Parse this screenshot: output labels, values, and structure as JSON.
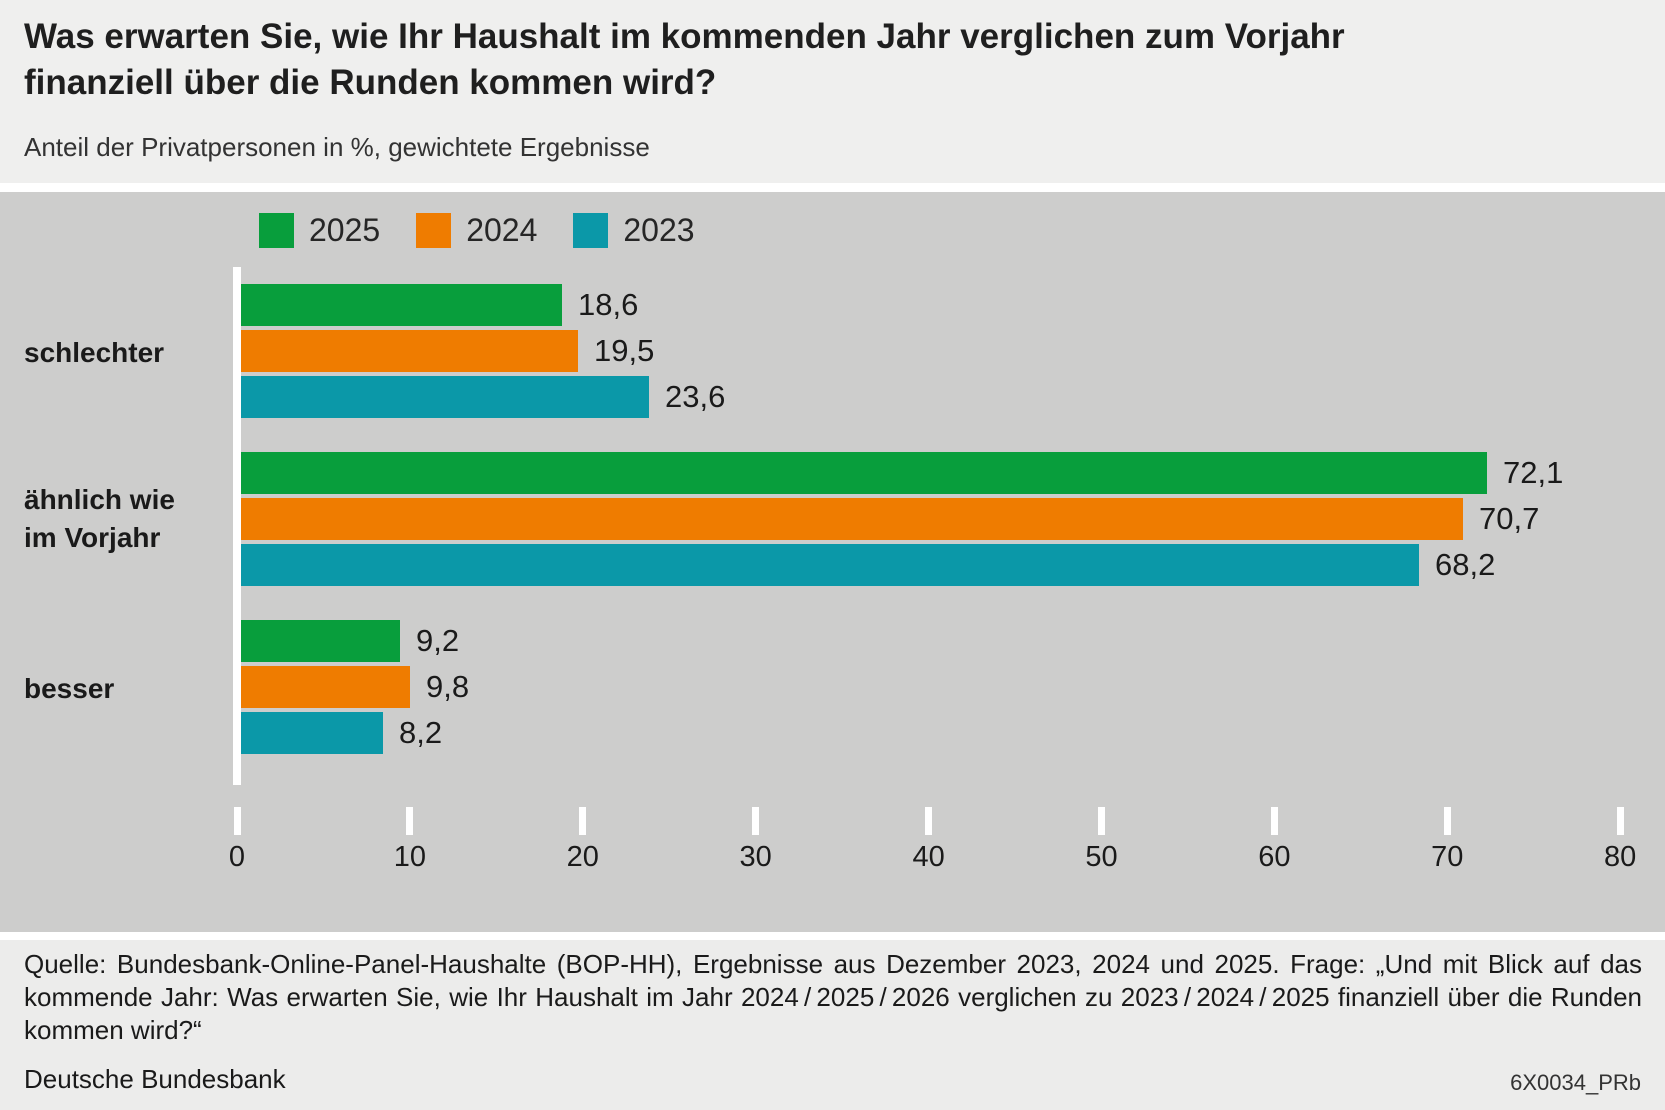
{
  "header": {
    "title_line1": "Was erwarten Sie, wie Ihr Haushalt im kommenden Jahr verglichen zum Vorjahr",
    "title_line2": "finanziell über die Runden kommen wird?",
    "subtitle": "Anteil der Privatpersonen in %, gewichtete Ergebnisse"
  },
  "chart_data": {
    "type": "bar",
    "orientation": "horizontal",
    "title": "Was erwarten Sie, wie Ihr Haushalt im kommenden Jahr verglichen zum Vorjahr finanziell über die Runden kommen wird?",
    "subtitle": "Anteil der Privatpersonen in %, gewichtete Ergebnisse",
    "categories": [
      "schlechter",
      "ähnlich wie\nim Vorjahr",
      "besser"
    ],
    "series": [
      {
        "name": "2025",
        "color": "#089e3c",
        "values": [
          18.6,
          72.1,
          9.2
        ]
      },
      {
        "name": "2024",
        "color": "#ef7c00",
        "values": [
          19.5,
          70.7,
          9.8
        ]
      },
      {
        "name": "2023",
        "color": "#0b98a8",
        "values": [
          23.6,
          68.2,
          8.2
        ]
      }
    ],
    "value_label_format": "decimal-comma",
    "x_ticks": [
      "0",
      "10",
      "20",
      "30",
      "40",
      "50",
      "60",
      "70",
      "80"
    ],
    "xlim": [
      0,
      80
    ],
    "legend_position": "top-left",
    "grid": false
  },
  "footer": {
    "source": "Quelle: Bundesbank-Online-Panel-Haushalte (BOP-HH), Ergebnisse aus Dezember 2023, 2024 und 2025. Frage: „Und mit Blick auf das kommende Jahr: Was erwarten Sie, wie Ihr Haushalt im Jahr 2024 / 2025 / 2026 verglichen zu 2023 / 2024 / 2025 finanziell über die Runden kommen wird?“",
    "brand": "Deutsche Bundesbank",
    "code": "6X0034_PRb"
  },
  "colors": {
    "header_bg": "#efefee",
    "panel_bg": "#cdcdcc",
    "footer_bg": "#ececeb",
    "axis": "#ffffff",
    "text": "#1a1a1a"
  }
}
